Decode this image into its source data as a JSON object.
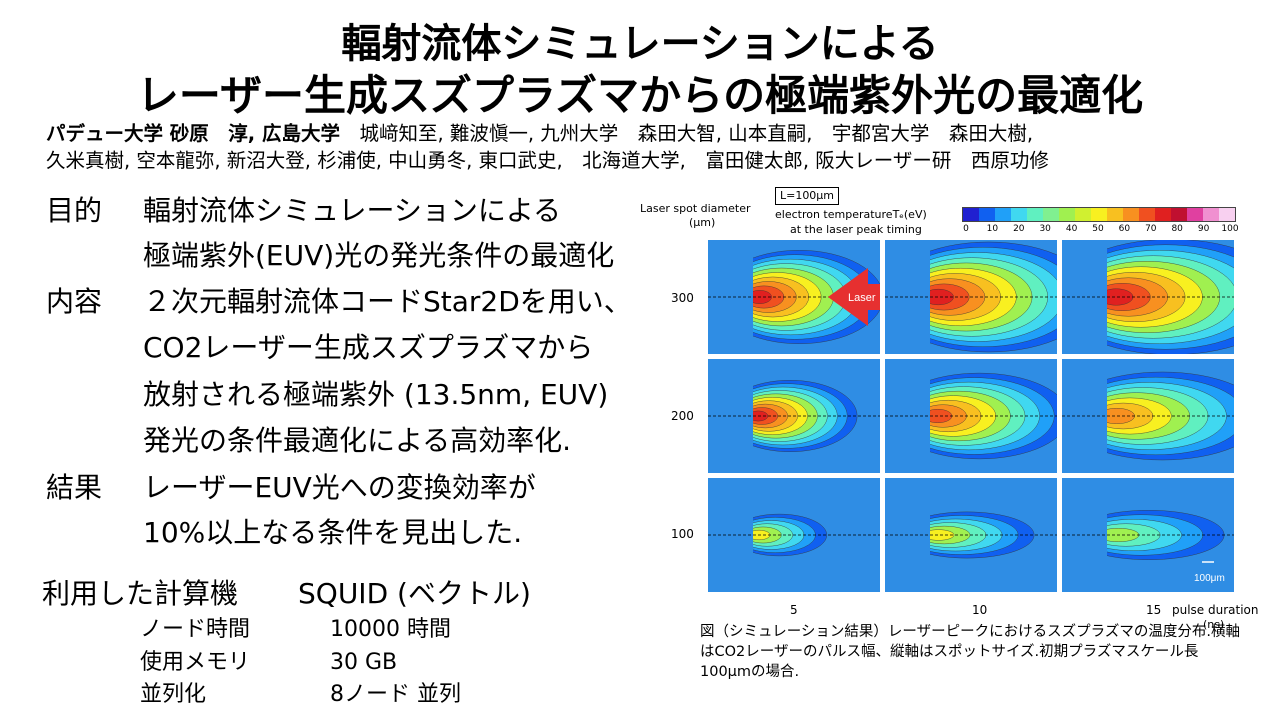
{
  "title_line1": "輻射流体シミュレーションによる",
  "title_line2": "レーザー生成スズプラズマからの極端紫外光の最適化",
  "authors_line1_bold": "パデュー大学 砂原　淳, 広島大学",
  "authors_line1_rest": "　城﨑知至, 難波愼一, 九州大学　森田大智, 山本直嗣,　宇都宮大学　森田大樹,",
  "authors_line2": "久米真樹, 空本龍弥, 新沼大登, 杉浦使, 中山勇冬, 東口武史,　北海道大学,　富田健太郎, 阪大レーザー研　西原功修",
  "sections": {
    "purpose_label": "目的",
    "purpose_line1": "輻射流体シミュレーションによる",
    "purpose_line2": "極端紫外(EUV)光の発光条件の最適化",
    "content_label": "内容",
    "content_line1": "２次元輻射流体コードStar2Dを用い、",
    "content_line2": "CO2レーザー生成スズプラズマから",
    "content_line3": "放射される極端紫外 (13.5nm, EUV)",
    "content_line4": "発光の条件最適化による高効率化.",
    "result_label": "結果",
    "result_line1": "レーザーEUV光への変換効率が",
    "result_line2": "10%以上なる条件を見出した."
  },
  "computer": {
    "label": "利用した計算機",
    "value": "SQUID (ベクトル)",
    "rows": [
      {
        "label": "ノード時間",
        "value": "10000 時間"
      },
      {
        "label": "使用メモリ",
        "value": "30 GB"
      },
      {
        "label": "並列化",
        "value": "8ノード 並列"
      }
    ]
  },
  "figure": {
    "y_title_line1": "Laser spot diameter",
    "y_title_line2": "(μm)",
    "l_box": "L=100μm",
    "cb_title_line1": "electron temperatureTₑ(eV)",
    "cb_title_line2": "at the laser peak timing",
    "cb_ticks": [
      "0",
      "10",
      "20",
      "30",
      "40",
      "50",
      "60",
      "70",
      "80",
      "90",
      "100"
    ],
    "cb_colors": [
      "#2020d0",
      "#1060f0",
      "#20a0f8",
      "#40d8f0",
      "#60f0c0",
      "#80f090",
      "#a0f050",
      "#d0f030",
      "#f8f020",
      "#f8c020",
      "#f89020",
      "#f05020",
      "#e02020",
      "#c01030",
      "#e040a0",
      "#f090d0",
      "#f8d0f0"
    ],
    "laser_label": "Laser",
    "y_values": [
      "300",
      "200",
      "100"
    ],
    "x_values": [
      "5",
      "10",
      "15"
    ],
    "x_title": "pulse duration",
    "x_unit": "(ns)",
    "scale_label": "100μm"
  },
  "caption": "図（シミュレーション結果）レーザーピークにおけるスズプラズマの温度分布.横軸はCO2レーザーのパルス幅、縦軸はスポットサイズ.初期プラズマスケール長100μmの場合."
}
